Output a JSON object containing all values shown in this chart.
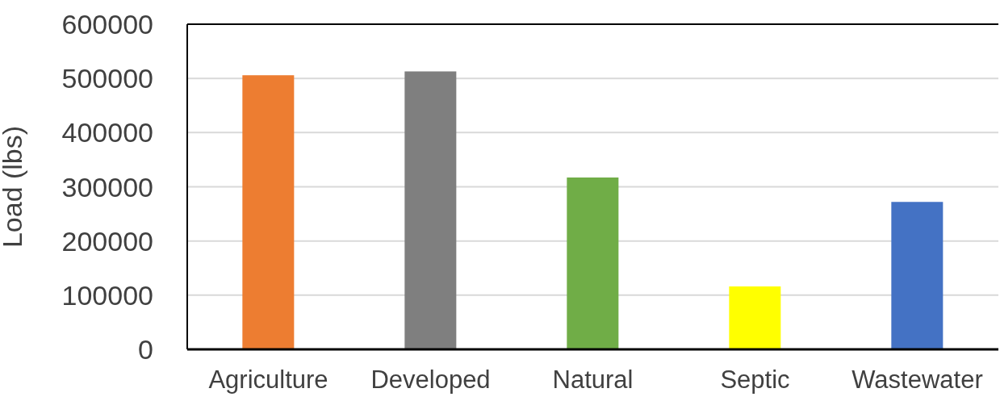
{
  "chart_data": {
    "type": "bar",
    "ylabel": "Load (lbs)",
    "categories": [
      "Agriculture",
      "Developed",
      "Natural",
      "Septic",
      "Wastewater"
    ],
    "values": [
      506000,
      513000,
      317000,
      116000,
      272000
    ],
    "colors": [
      "#ed7d31",
      "#7f7f7f",
      "#70ad47",
      "#ffff00",
      "#4472c4"
    ],
    "ylim": [
      0,
      600000
    ],
    "yticks": [
      0,
      100000,
      200000,
      300000,
      400000,
      500000,
      600000
    ],
    "grid": "y"
  }
}
